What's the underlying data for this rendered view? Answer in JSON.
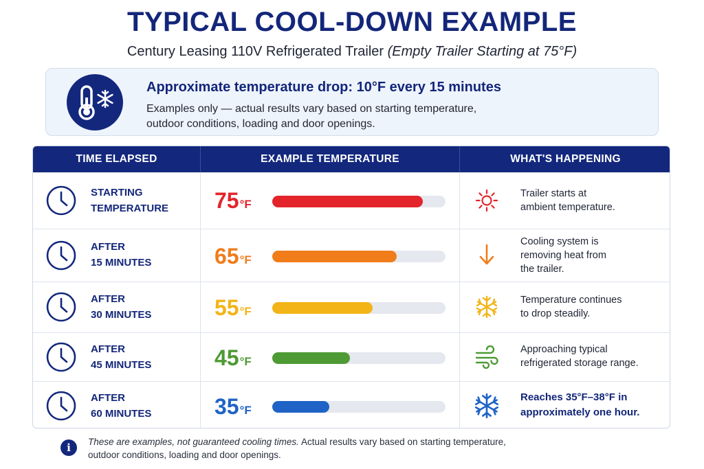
{
  "title": "TYPICAL COOL-DOWN EXAMPLE",
  "subtitle": {
    "main": "Century Leasing 110V Refrigerated Trailer",
    "italic": "(Empty Trailer Starting at 75°F)"
  },
  "callout": {
    "icon": "thermometer-snowflake-icon",
    "heading": "Approximate temperature drop: 10°F every 15 minutes",
    "line1": "Examples only — actual results vary based on starting temperature,",
    "line2": "outdoor conditions, loading and door openings."
  },
  "table": {
    "headers": [
      "TIME ELAPSED",
      "EXAMPLE TEMPERATURE",
      "WHAT'S HAPPENING"
    ],
    "temp_unit": "°F",
    "rows": [
      {
        "time_line1": "STARTING",
        "time_line2": "TEMPERATURE",
        "temp": "75",
        "color": "#e3242b",
        "fill_fraction": 0.87,
        "icon": "sun-icon",
        "happening": [
          "Trailer starts at",
          "ambient temperature."
        ],
        "emphasis": false
      },
      {
        "time_line1": "AFTER",
        "time_line2": "15 MINUTES",
        "temp": "65",
        "color": "#f07c1a",
        "fill_fraction": 0.72,
        "icon": "arrow-down-icon",
        "happening": [
          "Cooling system is",
          "removing heat from",
          "the trailer."
        ],
        "emphasis": false
      },
      {
        "time_line1": "AFTER",
        "time_line2": "30 MINUTES",
        "temp": "55",
        "color": "#f2b416",
        "fill_fraction": 0.58,
        "icon": "snowflake-icon",
        "happening": [
          "Temperature continues",
          "to drop steadily."
        ],
        "emphasis": false
      },
      {
        "time_line1": "AFTER",
        "time_line2": "45 MINUTES",
        "temp": "45",
        "color": "#4e9a35",
        "fill_fraction": 0.45,
        "icon": "wind-icon",
        "happening": [
          "Approaching typical",
          "refrigerated storage range."
        ],
        "emphasis": false
      },
      {
        "time_line1": "AFTER",
        "time_line2": "60 MINUTES",
        "temp": "35",
        "color": "#1f63c6",
        "fill_fraction": 0.33,
        "icon": "snowflake-icon",
        "happening": [
          "Reaches 35°F–38°F in",
          "approximately one hour."
        ],
        "emphasis": true
      }
    ]
  },
  "footer": {
    "icon": "info-icon",
    "icon_glyph": "i",
    "italic": "These are examples, not guaranteed cooling times.",
    "line1_rest": " Actual results vary based on starting temperature,",
    "line2": "outdoor conditions, loading and door openings."
  },
  "colors": {
    "navy": "#13287d",
    "callout_bg": "#eef4fb"
  }
}
